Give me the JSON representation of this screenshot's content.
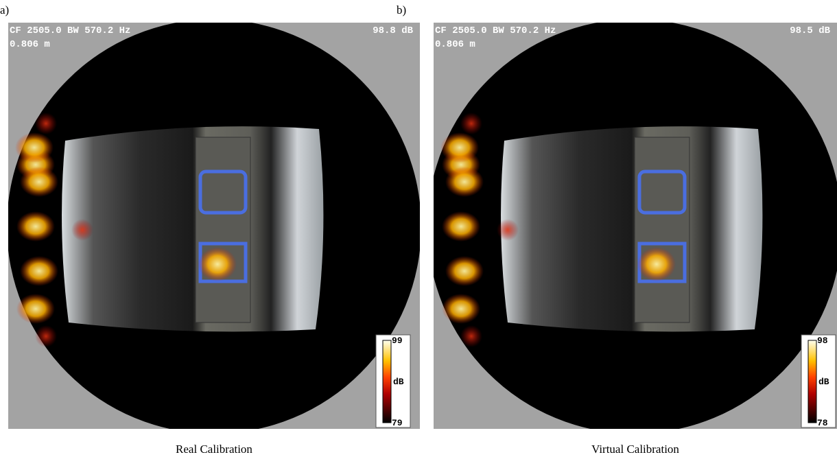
{
  "panels": [
    {
      "label": "a)",
      "header_left": "CF 2505.0 BW 570.2 Hz",
      "distance": "0.806 m",
      "level": "98.8 dB",
      "colorbar": {
        "max": "99",
        "unit": "dB",
        "min": "79"
      },
      "caption": "Real Calibration"
    },
    {
      "label": "b)",
      "header_left": "CF 2505.0 BW 570.2 Hz",
      "distance": "0.806 m",
      "level": "98.5 dB",
      "colorbar": {
        "max": "98",
        "unit": "dB",
        "min": "78"
      },
      "caption": "Virtual Calibration"
    }
  ]
}
